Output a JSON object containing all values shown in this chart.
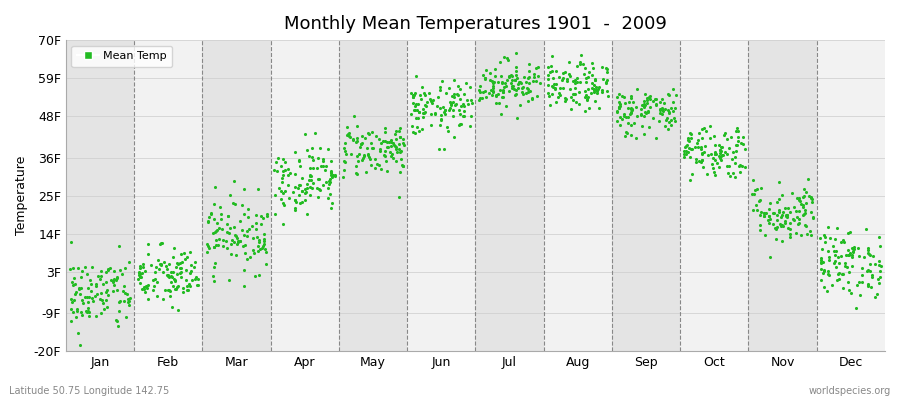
{
  "title": "Monthly Mean Temperatures 1901  -  2009",
  "ylabel": "Temperature",
  "yticks": [
    -20,
    -9,
    3,
    14,
    25,
    36,
    48,
    59,
    70
  ],
  "ytick_labels": [
    "-20F",
    "-9F",
    "3F",
    "14F",
    "25F",
    "36F",
    "48F",
    "59F",
    "70F"
  ],
  "ylim": [
    -20,
    70
  ],
  "months": [
    "Jan",
    "Feb",
    "Mar",
    "Apr",
    "May",
    "Jun",
    "Jul",
    "Aug",
    "Sep",
    "Oct",
    "Nov",
    "Dec"
  ],
  "month_centers": [
    0.5,
    1.5,
    2.5,
    3.5,
    4.5,
    5.5,
    6.5,
    7.5,
    8.5,
    9.5,
    10.5,
    11.5
  ],
  "month_boundaries": [
    1.0,
    2.0,
    3.0,
    4.0,
    5.0,
    6.0,
    7.0,
    8.0,
    9.0,
    10.0,
    11.0
  ],
  "dot_color": "#22bb22",
  "dot_size": 5,
  "background_color": "#eeeeee",
  "band_colors": [
    "#e4e4e4",
    "#f2f2f2"
  ],
  "legend_label": "Mean Temp",
  "footer_left": "Latitude 50.75 Longitude 142.75",
  "footer_right": "worldspecies.org",
  "n_years": 109,
  "monthly_means_f": [
    -3.5,
    1.5,
    14.0,
    30.0,
    38.5,
    50.0,
    57.5,
    56.5,
    49.5,
    38.0,
    20.0,
    5.5
  ],
  "monthly_stds_f": [
    5.5,
    4.5,
    5.5,
    5.0,
    4.0,
    4.0,
    3.5,
    3.5,
    3.5,
    4.0,
    4.5,
    5.0
  ]
}
